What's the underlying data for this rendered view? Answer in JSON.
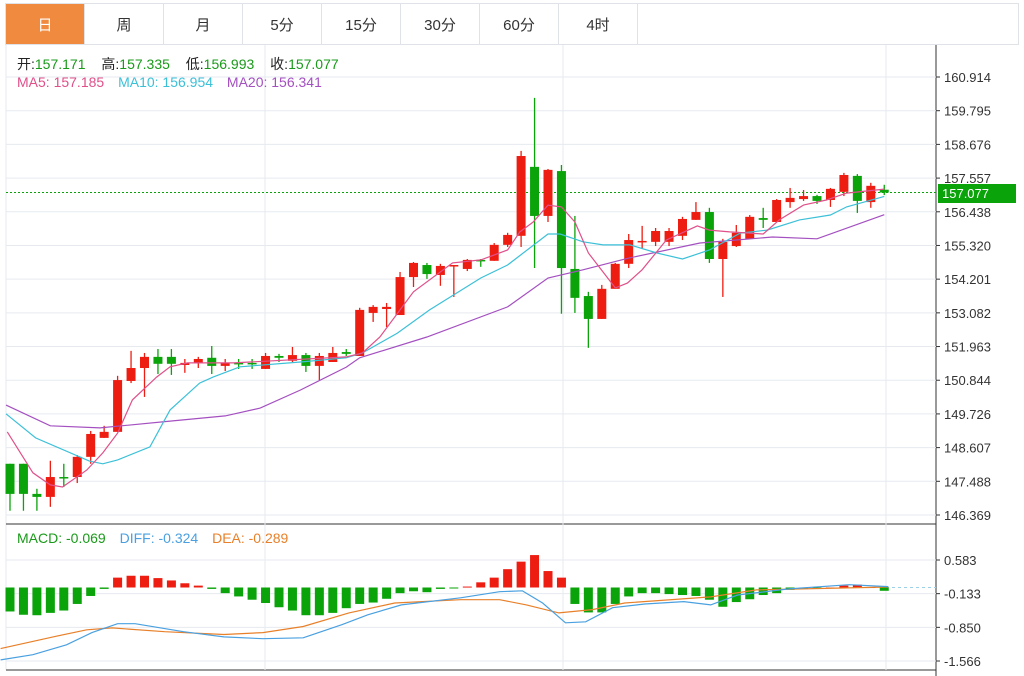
{
  "tabs": [
    "日",
    "周",
    "月",
    "5分",
    "15分",
    "30分",
    "60分",
    "4时"
  ],
  "active_tab": 0,
  "ohlc_legend": {
    "open_label": "开:",
    "open": "157.171",
    "high_label": "高:",
    "high": "157.335",
    "low_label": "低:",
    "low": "156.993",
    "close_label": "收:",
    "close": "157.077"
  },
  "ma_legend": {
    "ma5": "MA5: 157.185",
    "ma10": "MA10: 156.954",
    "ma20": "MA20: 156.341"
  },
  "macd_legend": {
    "macd": "MACD: -0.069",
    "diff": "DIFF: -0.324",
    "dea": "DEA: -0.289"
  },
  "current_price": "157.077",
  "colors": {
    "up": "#ee1d12",
    "down": "#0aa30a",
    "ma5": "#e0508a",
    "ma10": "#3cc0d8",
    "ma20": "#a450c0",
    "diff": "#4aa0e0",
    "dea": "#e8802a",
    "accent": "#f08a3e"
  },
  "chart_data": [
    {
      "type": "candlestick",
      "price_ticks": [
        "160.914",
        "159.795",
        "158.676",
        "157.557",
        "156.438",
        "155.320",
        "154.201",
        "153.082",
        "151.963",
        "150.844",
        "149.726",
        "148.607",
        "147.488",
        "146.369"
      ],
      "ylim": [
        146.369,
        160.914
      ],
      "candles": [
        [
          148.07,
          148.07,
          146.51,
          147.07
        ],
        [
          148.07,
          148.07,
          146.51,
          147.07
        ],
        [
          147.07,
          147.24,
          146.51,
          146.97
        ],
        [
          146.97,
          148.17,
          146.64,
          147.63
        ],
        [
          147.63,
          148.07,
          147.3,
          147.6
        ],
        [
          147.63,
          148.36,
          147.43,
          148.3
        ],
        [
          148.3,
          149.16,
          148.07,
          149.06
        ],
        [
          148.93,
          149.33,
          148.93,
          149.13
        ],
        [
          149.13,
          150.99,
          149.13,
          150.85
        ],
        [
          150.82,
          151.82,
          150.75,
          151.25
        ],
        [
          151.25,
          151.75,
          150.29,
          151.62
        ],
        [
          151.62,
          151.88,
          151.05,
          151.39
        ],
        [
          151.62,
          151.88,
          151.02,
          151.39
        ],
        [
          151.35,
          151.55,
          151.09,
          151.42
        ],
        [
          151.42,
          151.62,
          151.25,
          151.55
        ],
        [
          151.59,
          151.98,
          151.05,
          151.32
        ],
        [
          151.32,
          151.55,
          151.15,
          151.42
        ],
        [
          151.42,
          151.55,
          151.22,
          151.39
        ],
        [
          151.42,
          151.55,
          151.22,
          151.39
        ],
        [
          151.22,
          151.75,
          151.22,
          151.65
        ],
        [
          151.65,
          151.72,
          151.45,
          151.59
        ],
        [
          151.49,
          151.95,
          151.45,
          151.68
        ],
        [
          151.68,
          151.75,
          151.12,
          151.32
        ],
        [
          151.32,
          151.75,
          150.85,
          151.65
        ],
        [
          151.45,
          151.95,
          151.45,
          151.75
        ],
        [
          151.78,
          151.88,
          151.65,
          151.72
        ],
        [
          151.65,
          153.25,
          151.65,
          153.18
        ],
        [
          153.08,
          153.34,
          152.78,
          153.28
        ],
        [
          153.21,
          153.41,
          152.61,
          153.28
        ],
        [
          153.01,
          154.44,
          153.01,
          154.27
        ],
        [
          154.27,
          154.77,
          153.94,
          154.74
        ],
        [
          154.67,
          154.74,
          154.21,
          154.37
        ],
        [
          154.34,
          154.71,
          153.98,
          154.64
        ],
        [
          154.64,
          154.67,
          153.61,
          154.67
        ],
        [
          154.54,
          154.87,
          154.47,
          154.84
        ],
        [
          154.84,
          154.87,
          154.61,
          154.81
        ],
        [
          154.81,
          155.4,
          154.81,
          155.34
        ],
        [
          155.34,
          155.74,
          155.27,
          155.67
        ],
        [
          155.64,
          158.46,
          155.27,
          158.29
        ],
        [
          157.93,
          160.22,
          154.57,
          156.3
        ],
        [
          156.3,
          157.86,
          156.1,
          157.83
        ],
        [
          157.79,
          157.99,
          153.05,
          154.57
        ],
        [
          154.54,
          156.3,
          153.08,
          153.58
        ],
        [
          153.64,
          153.78,
          151.92,
          152.88
        ],
        [
          152.88,
          154.01,
          152.88,
          153.88
        ],
        [
          153.88,
          154.74,
          153.88,
          154.71
        ],
        [
          154.71,
          155.7,
          154.57,
          155.5
        ],
        [
          155.44,
          155.97,
          155.2,
          155.47
        ],
        [
          155.44,
          155.9,
          155.3,
          155.8
        ],
        [
          155.44,
          155.9,
          155.3,
          155.8
        ],
        [
          155.64,
          156.27,
          155.5,
          156.2
        ],
        [
          156.17,
          156.76,
          156.17,
          156.43
        ],
        [
          156.43,
          156.57,
          154.74,
          154.87
        ],
        [
          154.87,
          155.54,
          153.61,
          155.44
        ],
        [
          155.3,
          156.0,
          155.27,
          155.74
        ],
        [
          155.54,
          156.33,
          155.54,
          156.27
        ],
        [
          156.23,
          156.57,
          155.9,
          156.17
        ],
        [
          156.1,
          156.86,
          156.1,
          156.83
        ],
        [
          156.76,
          157.23,
          156.57,
          156.9
        ],
        [
          156.86,
          157.16,
          156.8,
          156.96
        ],
        [
          156.96,
          157.0,
          156.7,
          156.8
        ],
        [
          156.83,
          157.23,
          156.6,
          157.2
        ],
        [
          157.1,
          157.73,
          156.96,
          157.66
        ],
        [
          157.63,
          157.69,
          156.4,
          156.8
        ],
        [
          156.76,
          157.4,
          156.57,
          157.3
        ],
        [
          157.171,
          157.335,
          156.993,
          157.077
        ]
      ],
      "ma5": [
        [
          -0.2,
          149.13
        ],
        [
          1.7,
          147.77
        ],
        [
          3,
          147.37
        ],
        [
          3.9,
          147.3
        ],
        [
          5.7,
          147.86
        ],
        [
          6.9,
          148.43
        ],
        [
          8,
          149.09
        ],
        [
          9.1,
          150.19
        ],
        [
          10.9,
          150.95
        ],
        [
          11.9,
          151.29
        ],
        [
          13.2,
          151.42
        ],
        [
          16.6,
          151.42
        ],
        [
          25,
          151.62
        ],
        [
          26.2,
          151.75
        ],
        [
          27.5,
          152.28
        ],
        [
          30,
          153.78
        ],
        [
          32.9,
          154.74
        ],
        [
          35,
          154.84
        ],
        [
          37,
          155.17
        ],
        [
          37.9,
          155.77
        ],
        [
          38.9,
          156.1
        ],
        [
          40,
          156.66
        ],
        [
          41,
          156.6
        ],
        [
          42,
          156.1
        ],
        [
          43,
          155.07
        ],
        [
          45,
          153.91
        ],
        [
          45.9,
          154.07
        ],
        [
          47,
          154.51
        ],
        [
          48.8,
          155.5
        ],
        [
          51.1,
          155.97
        ],
        [
          52,
          155.83
        ],
        [
          53.5,
          155.77
        ],
        [
          56,
          155.7
        ],
        [
          57.2,
          156.17
        ],
        [
          59,
          156.66
        ],
        [
          60.7,
          156.83
        ],
        [
          62.2,
          157.06
        ],
        [
          65,
          157.19
        ]
      ],
      "ma10": [
        [
          -0.3,
          149.73
        ],
        [
          1.9,
          148.93
        ],
        [
          5.9,
          148.16
        ],
        [
          6.9,
          148.07
        ],
        [
          8,
          148.2
        ],
        [
          10.4,
          148.63
        ],
        [
          11.9,
          149.86
        ],
        [
          14.1,
          150.75
        ],
        [
          15.1,
          150.95
        ],
        [
          17.1,
          151.29
        ],
        [
          21.6,
          151.45
        ],
        [
          25,
          151.59
        ],
        [
          26.2,
          151.75
        ],
        [
          28.8,
          152.41
        ],
        [
          31.2,
          153.18
        ],
        [
          35,
          154.24
        ],
        [
          37,
          154.67
        ],
        [
          40,
          155.7
        ],
        [
          40.9,
          155.7
        ],
        [
          42.6,
          155.44
        ],
        [
          44.1,
          155.34
        ],
        [
          46.1,
          155.34
        ],
        [
          48.1,
          155.07
        ],
        [
          50,
          154.87
        ],
        [
          52,
          155.17
        ],
        [
          54.3,
          155.73
        ],
        [
          56.3,
          155.83
        ],
        [
          58.7,
          156.17
        ],
        [
          61,
          156.33
        ],
        [
          62.2,
          156.6
        ],
        [
          65,
          156.95
        ]
      ],
      "ma20": [
        [
          -0.3,
          150.02
        ],
        [
          3,
          149.33
        ],
        [
          6.7,
          149.26
        ],
        [
          12,
          149.49
        ],
        [
          16,
          149.66
        ],
        [
          18.6,
          149.92
        ],
        [
          21.6,
          150.52
        ],
        [
          25,
          151.28
        ],
        [
          26,
          151.59
        ],
        [
          31,
          152.28
        ],
        [
          37,
          153.28
        ],
        [
          40,
          154.24
        ],
        [
          42.6,
          154.51
        ],
        [
          46,
          154.9
        ],
        [
          51.3,
          155.4
        ],
        [
          56.7,
          155.6
        ],
        [
          60,
          155.54
        ],
        [
          65,
          156.34
        ]
      ]
    },
    {
      "type": "bar+line",
      "title": "MACD",
      "ticks": [
        "0.583",
        "-0.133",
        "-0.850",
        "-1.566"
      ],
      "ylim": [
        -1.566,
        0.583
      ],
      "macd_hist": [
        -0.51,
        -0.58,
        -0.59,
        -0.54,
        -0.49,
        -0.35,
        -0.18,
        -0.03,
        0.21,
        0.25,
        0.25,
        0.2,
        0.15,
        0.09,
        0.04,
        -0.03,
        -0.12,
        -0.19,
        -0.26,
        -0.33,
        -0.42,
        -0.49,
        -0.59,
        -0.59,
        -0.54,
        -0.44,
        -0.35,
        -0.32,
        -0.24,
        -0.12,
        -0.08,
        -0.1,
        -0.03,
        -0.01,
        0.02,
        0.11,
        0.21,
        0.39,
        0.55,
        0.69,
        0.35,
        0.21,
        -0.35,
        -0.53,
        -0.53,
        -0.35,
        -0.19,
        -0.12,
        -0.12,
        -0.14,
        -0.16,
        -0.18,
        -0.26,
        -0.41,
        -0.31,
        -0.25,
        -0.16,
        -0.12,
        -0.05,
        -0.02,
        -0.01,
        0.0,
        0.04,
        0.06,
        0.01,
        -0.07
      ],
      "diff": [
        [
          -0.7,
          -1.54
        ],
        [
          1.7,
          -1.43
        ],
        [
          4.2,
          -1.22
        ],
        [
          6.1,
          -0.96
        ],
        [
          8,
          -0.77
        ],
        [
          9.3,
          -0.77
        ],
        [
          12.9,
          -0.94
        ],
        [
          15.9,
          -1.05
        ],
        [
          18.8,
          -1.09
        ],
        [
          21.8,
          -1.07
        ],
        [
          24.7,
          -0.79
        ],
        [
          26.6,
          -0.58
        ],
        [
          29.1,
          -0.37
        ],
        [
          33.5,
          -0.22
        ],
        [
          36.4,
          -0.09
        ],
        [
          38.1,
          -0.07
        ],
        [
          39.6,
          -0.33
        ],
        [
          41.3,
          -0.75
        ],
        [
          42.8,
          -0.73
        ],
        [
          44.8,
          -0.43
        ],
        [
          47.2,
          -0.35
        ],
        [
          50.1,
          -0.3
        ],
        [
          52.1,
          -0.37
        ],
        [
          54.1,
          -0.16
        ],
        [
          57.9,
          -0.03
        ],
        [
          62.4,
          0.06
        ],
        [
          65.3,
          0.02
        ]
      ],
      "dea": [
        [
          -0.7,
          -1.3
        ],
        [
          3.2,
          -1.05
        ],
        [
          5.7,
          -0.9
        ],
        [
          7.6,
          -0.86
        ],
        [
          11.5,
          -0.94
        ],
        [
          15.9,
          -1.0
        ],
        [
          18.8,
          -0.96
        ],
        [
          21.8,
          -0.83
        ],
        [
          25.2,
          -0.54
        ],
        [
          28.6,
          -0.33
        ],
        [
          33.5,
          -0.26
        ],
        [
          36.4,
          -0.26
        ],
        [
          38.4,
          -0.37
        ],
        [
          40.8,
          -0.54
        ],
        [
          43.3,
          -0.47
        ],
        [
          45.7,
          -0.33
        ],
        [
          52.1,
          -0.2
        ],
        [
          55.5,
          -0.05
        ],
        [
          65.3,
          0.01
        ]
      ]
    }
  ]
}
